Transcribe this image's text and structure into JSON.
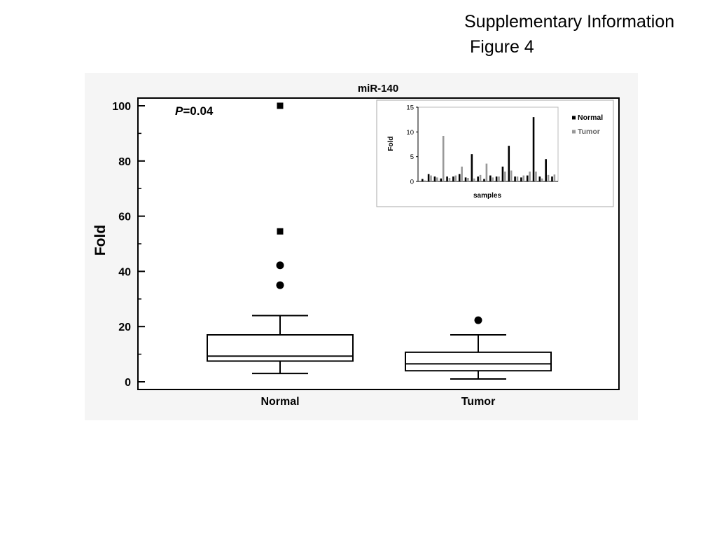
{
  "header": {
    "line1": "Supplementary Information",
    "line2": "Figure 4"
  },
  "chart_data": [
    {
      "type": "box",
      "title": "miR-140",
      "ylabel": "Fold",
      "xlabel": "",
      "ylim": [
        0,
        100
      ],
      "yticks": [
        0,
        20,
        40,
        60,
        80,
        100
      ],
      "annotation": {
        "italic": "P",
        "rest": "=0.04"
      },
      "grid": false,
      "categories": [
        "Normal",
        "Tumor"
      ],
      "boxes": [
        {
          "name": "Normal",
          "whisker_low": 3,
          "q1": 7.5,
          "median": 9.3,
          "q3": 17,
          "whisker_high": 24,
          "outliers_circle": [
            35,
            42.2
          ],
          "outliers_square": [
            54.5,
            100
          ]
        },
        {
          "name": "Tumor",
          "whisker_low": 1,
          "q1": 4,
          "median": 6.5,
          "q3": 10.7,
          "whisker_high": 17,
          "outliers_circle": [
            22.3
          ],
          "outliers_square": []
        }
      ]
    },
    {
      "type": "bar",
      "title": "",
      "xlabel": "samples",
      "ylabel": "Fold",
      "ylim": [
        0,
        15
      ],
      "yticks": [
        0,
        5,
        10,
        15
      ],
      "legend_position": "top-right",
      "grid": false,
      "series": [
        {
          "name": "Normal",
          "color": "#000000",
          "values": [
            0.5,
            1.5,
            1,
            0.6,
            1,
            1,
            1.5,
            0.8,
            5.5,
            1,
            0.5,
            1.2,
            1,
            3,
            7.2,
            1,
            0.8,
            1.2,
            13,
            1,
            4.5,
            1
          ]
        },
        {
          "name": "Tumor",
          "color": "#999999",
          "values": [
            0.2,
            1.2,
            0.8,
            9.2,
            0.7,
            1.2,
            3,
            0.7,
            0.6,
            1.3,
            3.6,
            0.8,
            1,
            2,
            2.2,
            1,
            1.2,
            2,
            2,
            0.6,
            1.3,
            1.4
          ]
        }
      ]
    }
  ]
}
